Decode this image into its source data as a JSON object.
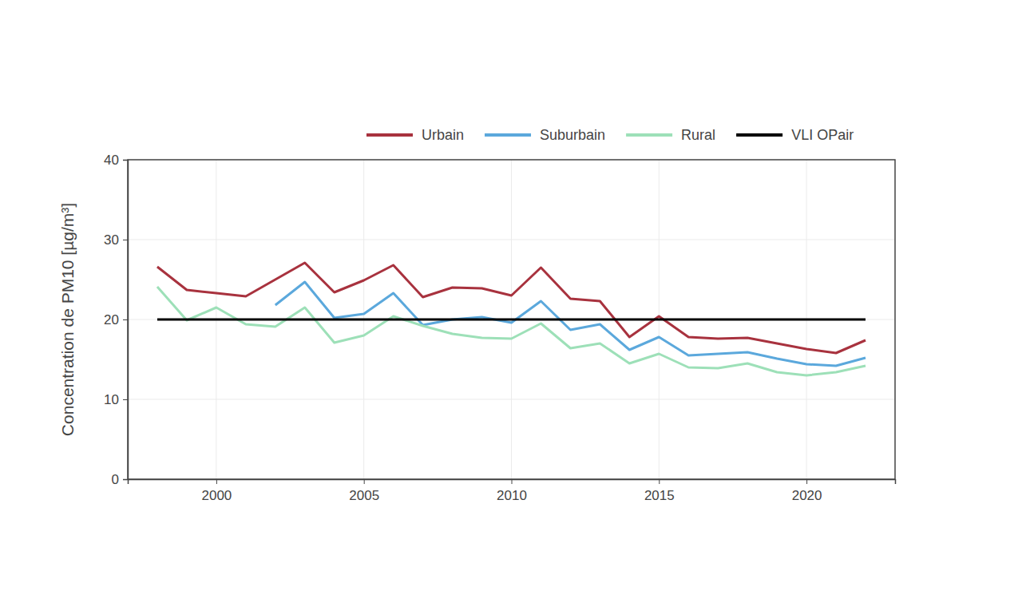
{
  "chart_data": {
    "type": "line",
    "y_label": "Concentration de PM10 [µg/m³]",
    "x": [
      1998,
      1999,
      2000,
      2001,
      2002,
      2003,
      2004,
      2005,
      2006,
      2007,
      2008,
      2009,
      2010,
      2011,
      2012,
      2013,
      2014,
      2015,
      2016,
      2017,
      2018,
      2019,
      2020,
      2021,
      2022
    ],
    "series": [
      {
        "name": "Urbain",
        "color": "#a8323e",
        "values": [
          26.6,
          23.7,
          23.3,
          22.9,
          25.0,
          27.1,
          23.4,
          24.9,
          26.8,
          22.8,
          24.0,
          23.9,
          23.0,
          26.5,
          22.6,
          22.3,
          17.8,
          20.4,
          17.8,
          17.6,
          17.7,
          17.0,
          16.3,
          15.8,
          17.4
        ]
      },
      {
        "name": "Suburbain",
        "color": "#5ba8dc",
        "values": [
          null,
          null,
          null,
          null,
          21.8,
          24.7,
          20.2,
          20.7,
          23.3,
          19.3,
          20.0,
          20.3,
          19.6,
          22.3,
          18.7,
          19.4,
          16.2,
          17.8,
          15.5,
          15.7,
          15.9,
          15.1,
          14.4,
          14.2,
          15.2
        ]
      },
      {
        "name": "Rural",
        "color": "#9de0b8",
        "values": [
          24.1,
          19.9,
          21.5,
          19.4,
          19.1,
          21.5,
          17.1,
          18.0,
          20.4,
          19.2,
          18.2,
          17.7,
          17.6,
          19.5,
          16.4,
          17.0,
          14.5,
          15.7,
          14.0,
          13.9,
          14.5,
          13.4,
          13.0,
          13.4,
          14.2
        ]
      },
      {
        "name": "VLI OPair",
        "color": "#000000",
        "values": [
          20,
          20,
          20,
          20,
          20,
          20,
          20,
          20,
          20,
          20,
          20,
          20,
          20,
          20,
          20,
          20,
          20,
          20,
          20,
          20,
          20,
          20,
          20,
          20,
          20
        ]
      }
    ],
    "xlim": [
      1997,
      2023
    ],
    "xticks": [
      2000,
      2005,
      2010,
      2015,
      2020
    ],
    "ylim": [
      0,
      40
    ],
    "yticks": [
      0,
      10,
      20,
      30,
      40
    ],
    "grid": true,
    "legend": "top"
  }
}
